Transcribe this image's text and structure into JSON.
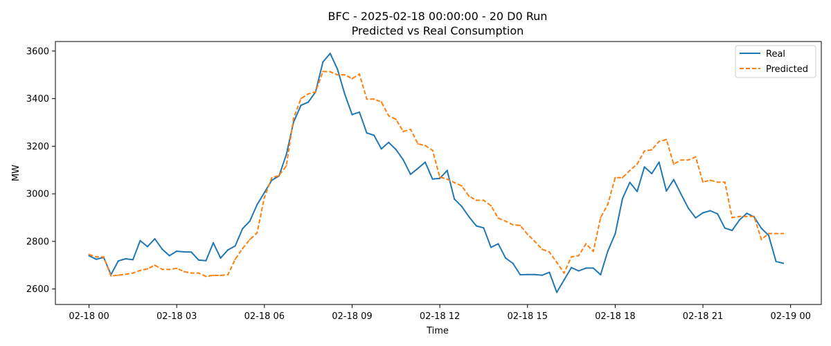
{
  "chart_data": {
    "type": "line",
    "title": "BFC - 2025-02-18 00:00:00 - 20 D0 Run",
    "subtitle": "Predicted vs Real Consumption",
    "xlabel": "Time",
    "ylabel": "MW",
    "xlim_hours": [
      -1.15,
      25.05
    ],
    "ylim": [
      2535,
      3640
    ],
    "x_ticks": [
      {
        "label": "02-18 00",
        "hour": 0
      },
      {
        "label": "02-18 03",
        "hour": 3
      },
      {
        "label": "02-18 06",
        "hour": 6
      },
      {
        "label": "02-18 09",
        "hour": 9
      },
      {
        "label": "02-18 12",
        "hour": 12
      },
      {
        "label": "02-18 15",
        "hour": 15
      },
      {
        "label": "02-18 18",
        "hour": 18
      },
      {
        "label": "02-18 21",
        "hour": 21
      },
      {
        "label": "02-19 00",
        "hour": 24
      }
    ],
    "y_ticks": [
      2600,
      2800,
      3000,
      3200,
      3400,
      3600
    ],
    "legend_position": "top-right",
    "grid": false,
    "series": [
      {
        "name": "Real",
        "color": "#1f77b4",
        "style": "solid",
        "x_hours": [
          0,
          0.25,
          0.5,
          0.75,
          1,
          1.25,
          1.5,
          1.75,
          2,
          2.25,
          2.5,
          2.75,
          3,
          3.25,
          3.5,
          3.75,
          4,
          4.25,
          4.5,
          4.75,
          5,
          5.25,
          5.5,
          5.75,
          6,
          6.25,
          6.5,
          6.75,
          7,
          7.25,
          7.5,
          7.75,
          8,
          8.25,
          8.5,
          8.75,
          9,
          9.25,
          9.5,
          9.75,
          10,
          10.25,
          10.5,
          10.75,
          11,
          11.25,
          11.5,
          11.75,
          12,
          12.25,
          12.5,
          12.75,
          13,
          13.25,
          13.5,
          13.75,
          14,
          14.25,
          14.5,
          14.75,
          15,
          15.25,
          15.5,
          15.75,
          16,
          16.25,
          16.5,
          16.75,
          17,
          17.25,
          17.5,
          17.75,
          18,
          18.25,
          18.5,
          18.75,
          19,
          19.25,
          19.5,
          19.75,
          20,
          20.25,
          20.5,
          20.75,
          21,
          21.25,
          21.5,
          21.75,
          22,
          22.25,
          22.5,
          22.75,
          23,
          23.25,
          23.5,
          23.75
        ],
        "values": [
          2740,
          2725,
          2733,
          2660,
          2718,
          2727,
          2723,
          2803,
          2778,
          2811,
          2768,
          2740,
          2759,
          2756,
          2755,
          2722,
          2719,
          2794,
          2730,
          2764,
          2781,
          2853,
          2885,
          2955,
          3005,
          3057,
          3075,
          3165,
          3302,
          3372,
          3385,
          3428,
          3554,
          3590,
          3523,
          3418,
          3333,
          3343,
          3256,
          3246,
          3189,
          3216,
          3186,
          3143,
          3082,
          3107,
          3133,
          3062,
          3065,
          3098,
          2978,
          2947,
          2903,
          2865,
          2857,
          2775,
          2790,
          2730,
          2708,
          2660,
          2661,
          2661,
          2658,
          2670,
          2586,
          2638,
          2690,
          2676,
          2688,
          2688,
          2660,
          2760,
          2832,
          2980,
          3048,
          3010,
          3113,
          3085,
          3133,
          3012,
          3060,
          2999,
          2940,
          2899,
          2920,
          2929,
          2916,
          2856,
          2846,
          2890,
          2918,
          2903,
          2855,
          2825,
          2716,
          2708
        ]
      },
      {
        "name": "Predicted",
        "color": "#ff7f0e",
        "style": "dashed",
        "x_hours": [
          0,
          0.25,
          0.5,
          0.75,
          1,
          1.25,
          1.5,
          1.75,
          2,
          2.25,
          2.5,
          2.75,
          3,
          3.25,
          3.5,
          3.75,
          4,
          4.25,
          4.5,
          4.75,
          5,
          5.25,
          5.5,
          5.75,
          6,
          6.25,
          6.5,
          6.75,
          7,
          7.25,
          7.5,
          7.75,
          8,
          8.25,
          8.5,
          8.75,
          9,
          9.25,
          9.5,
          9.75,
          10,
          10.25,
          10.5,
          10.75,
          11,
          11.25,
          11.5,
          11.75,
          12,
          12.25,
          12.5,
          12.75,
          13,
          13.25,
          13.5,
          13.75,
          14,
          14.25,
          14.5,
          14.75,
          15,
          15.25,
          15.5,
          15.75,
          16,
          16.25,
          16.5,
          16.75,
          17,
          17.25,
          17.5,
          17.75,
          18,
          18.25,
          18.5,
          18.75,
          19,
          19.25,
          19.5,
          19.75,
          20,
          20.25,
          20.5,
          20.75,
          21,
          21.25,
          21.5,
          21.75,
          22,
          22.25,
          22.5,
          22.75,
          23,
          23.25,
          23.5,
          23.75
        ],
        "values": [
          2745,
          2735,
          2735,
          2655,
          2658,
          2662,
          2667,
          2678,
          2685,
          2700,
          2683,
          2682,
          2687,
          2673,
          2667,
          2667,
          2653,
          2657,
          2657,
          2660,
          2725,
          2770,
          2808,
          2836,
          2985,
          3067,
          3077,
          3118,
          3318,
          3400,
          3420,
          3428,
          3514,
          3513,
          3500,
          3500,
          3484,
          3503,
          3398,
          3398,
          3386,
          3328,
          3313,
          3262,
          3271,
          3210,
          3203,
          3183,
          3070,
          3062,
          3047,
          3033,
          2990,
          2973,
          2973,
          2950,
          2898,
          2885,
          2870,
          2867,
          2830,
          2800,
          2767,
          2755,
          2712,
          2667,
          2735,
          2740,
          2790,
          2758,
          2900,
          2957,
          3068,
          3068,
          3098,
          3125,
          3180,
          3185,
          3220,
          3228,
          3125,
          3142,
          3142,
          3155,
          3050,
          3057,
          3049,
          3049,
          2900,
          2905,
          2905,
          2905,
          2808,
          2833,
          2833,
          2833
        ]
      }
    ]
  }
}
